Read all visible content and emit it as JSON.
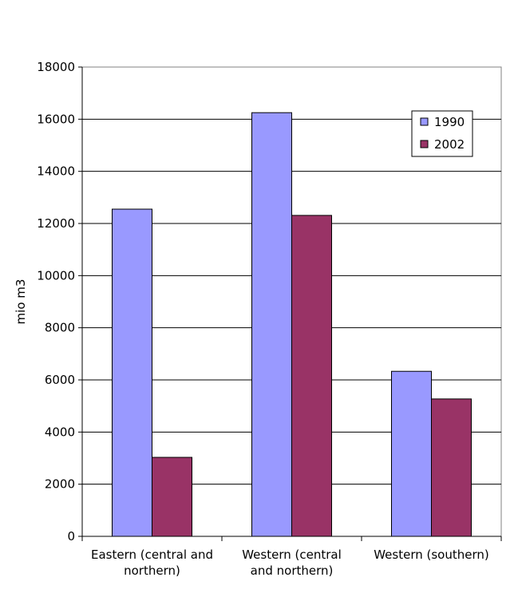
{
  "chart_data": {
    "type": "bar",
    "title": "",
    "xlabel": "",
    "ylabel": "mio m3",
    "ylim": [
      0,
      18000
    ],
    "yticks": [
      0,
      2000,
      4000,
      6000,
      8000,
      10000,
      12000,
      14000,
      16000,
      18000
    ],
    "grid": true,
    "legend_position": "top-right",
    "categories": [
      [
        "Eastern (central and",
        "northern)"
      ],
      [
        "Western (central",
        "and northern)"
      ],
      [
        "Western (southern)"
      ]
    ],
    "series": [
      {
        "name": "1990",
        "color": "#9999FF",
        "values": [
          12550,
          16250,
          6330
        ]
      },
      {
        "name": "2002",
        "color": "#993366",
        "values": [
          3030,
          12310,
          5270
        ]
      }
    ]
  }
}
